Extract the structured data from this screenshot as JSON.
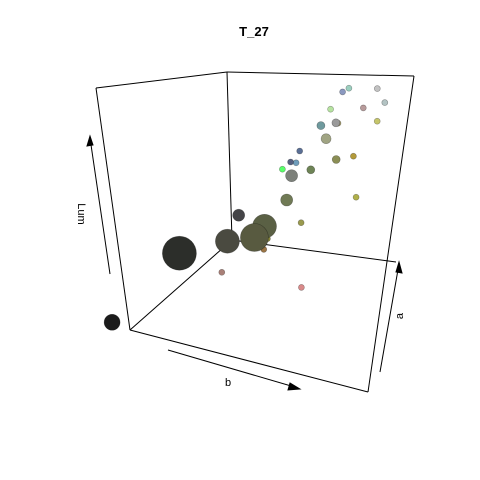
{
  "chart_data": {
    "type": "scatter",
    "subtype": "3d-scatter",
    "title": "T_27",
    "axis_labels": {
      "x": "b",
      "y": "a",
      "z": "Lum"
    },
    "grid": false,
    "legend": "none",
    "points": [
      {
        "x": -0.08,
        "y": -0.08,
        "z": 0.1,
        "size": 8,
        "color": "#1b1b1b"
      },
      {
        "x": 0.2,
        "y": 0.3,
        "z": 0.58,
        "size": 17,
        "color": "#2c2e2a"
      },
      {
        "x": 0.5,
        "y": 0.38,
        "z": 0.22,
        "size": 3,
        "color": "#a98078"
      },
      {
        "x": 0.5,
        "y": 0.45,
        "z": 0.5,
        "size": 12,
        "color": "#4a4a40"
      },
      {
        "x": 0.55,
        "y": 0.52,
        "z": 0.7,
        "size": 6,
        "color": "#454548"
      },
      {
        "x": 0.62,
        "y": 0.58,
        "z": 0.48,
        "size": 14,
        "color": "#585a40"
      },
      {
        "x": 0.68,
        "y": 0.62,
        "z": 0.54,
        "size": 12,
        "color": "#5a6044"
      },
      {
        "x": 0.72,
        "y": 0.56,
        "z": 0.3,
        "size": 3,
        "color": "#9a7444"
      },
      {
        "x": 0.74,
        "y": 0.58,
        "z": 0.38,
        "size": 3,
        "color": "#8b8a3c"
      },
      {
        "x": 0.78,
        "y": 0.74,
        "z": 0.72,
        "size": 6,
        "color": "#707a55"
      },
      {
        "x": 0.8,
        "y": 0.78,
        "z": 0.92,
        "size": 6,
        "color": "#7c807a"
      },
      {
        "x": 0.8,
        "y": 0.7,
        "z": 0.95,
        "size": 3,
        "color": "#5aff6a"
      },
      {
        "x": 0.85,
        "y": 0.78,
        "z": 0.99,
        "size": 3,
        "color": "#6f9dbb"
      },
      {
        "x": 0.85,
        "y": 0.82,
        "z": 1.1,
        "size": 3,
        "color": "#5a6f95"
      },
      {
        "x": 0.86,
        "y": 0.9,
        "z": 0.96,
        "size": 4,
        "color": "#6e8456"
      },
      {
        "x": 0.88,
        "y": 0.7,
        "z": 0.95,
        "size": 3,
        "color": "#566080"
      },
      {
        "x": 0.92,
        "y": 0.72,
        "z": 0.42,
        "size": 3,
        "color": "#9a9a4e"
      },
      {
        "x": 0.94,
        "y": 0.94,
        "z": 1.28,
        "size": 4,
        "color": "#6f9a9e"
      },
      {
        "x": 1.0,
        "y": 0.92,
        "z": 1.12,
        "size": 5,
        "color": "#a0a483"
      },
      {
        "x": 1.02,
        "y": 0.98,
        "z": 0.95,
        "size": 4,
        "color": "#8b8e55"
      },
      {
        "x": 1.06,
        "y": 0.96,
        "z": 1.22,
        "size": 4,
        "color": "#9a9a9a"
      },
      {
        "x": 1.08,
        "y": 0.9,
        "z": 1.3,
        "size": 3,
        "color": "#b6e3a0"
      },
      {
        "x": 1.1,
        "y": 0.94,
        "z": 1.18,
        "size": 3,
        "color": "#a9a070"
      },
      {
        "x": 1.12,
        "y": 1.04,
        "z": 0.92,
        "size": 3,
        "color": "#b39a3a"
      },
      {
        "x": 1.1,
        "y": 1.06,
        "z": 0.6,
        "size": 3,
        "color": "#b0b04a"
      },
      {
        "x": 1.08,
        "y": 1.02,
        "z": 1.48,
        "size": 3,
        "color": "#8b99c0"
      },
      {
        "x": 1.06,
        "y": 1.1,
        "z": 1.55,
        "size": 3,
        "color": "#9bcfbf"
      },
      {
        "x": 1.2,
        "y": 1.2,
        "z": 1.2,
        "size": 3,
        "color": "#c5c56a"
      },
      {
        "x": 1.16,
        "y": 1.26,
        "z": 1.52,
        "size": 3,
        "color": "#c2c2c2"
      },
      {
        "x": 1.18,
        "y": 1.3,
        "z": 1.4,
        "size": 3,
        "color": "#b3c3c3"
      },
      {
        "x": 1.1,
        "y": 1.18,
        "z": 1.38,
        "size": 3,
        "color": "#b89b9b"
      },
      {
        "x": 0.7,
        "y": 0.9,
        "z": 0.1,
        "size": 3,
        "color": "#d98a8a"
      }
    ]
  }
}
